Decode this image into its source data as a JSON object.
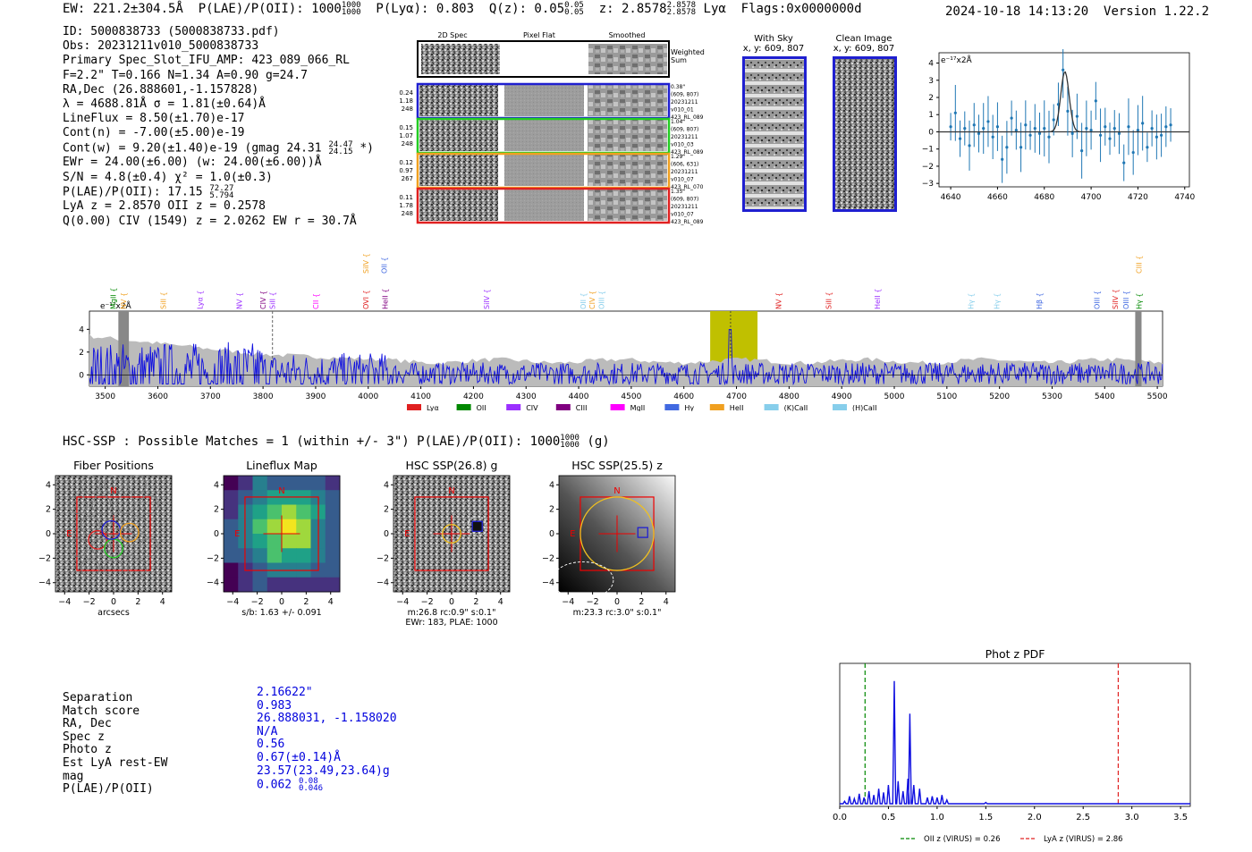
{
  "header": {
    "ew": "EW: 221.2±304.5Å",
    "plae_label": "P(LAE)/P(OII): 1000",
    "plae_hi": "1000",
    "plae_lo": "1000",
    "plya": "P(Lyα): 0.803",
    "qz_label": "Q(z): 0.05",
    "qz_hi": "0.05",
    "qz_lo": "0.05",
    "z_label": "z: 2.8578",
    "z_hi": "2.8578",
    "z_lo": "2.8578",
    "z_line": "Lyα",
    "flags": "Flags:0x0000000d",
    "timestamp": "2024-10-18 14:13:20",
    "version": "Version 1.22.2"
  },
  "info": {
    "id": "ID: 5000838733 (5000838733.pdf)",
    "obs": "Obs: 20231211v010_5000838733",
    "primary": "Primary Spec_Slot_IFU_AMP: 423_089_066_RL",
    "fit": "F=2.2\"  T=0.166  N=1.34  A=0.90  g=24.7",
    "radec": "RA,Dec (26.888601,-1.157828)",
    "lambda": "λ = 4688.81Å   σ = 1.81(±0.64)Å",
    "lineflux": "LineFlux = 8.50(±1.70)e-17",
    "contn": "Cont(n) = -7.00(±5.00)e-19",
    "contw": "Cont(w) = 9.20(±1.40)e-19 (gmag 24.31",
    "contw_hi": "24.47",
    "contw_lo": "24.15",
    "contw_end": "*)",
    "ewr": "EWr = 24.00(±6.00) (w: 24.00(±6.00))Å",
    "sn": "S/N = 4.8(±0.4)  χ² = 1.0(±0.3)",
    "plae": "P(LAE)/P(OII): 17.15",
    "plae_hi": "72.27",
    "plae_lo": "5.794",
    "lyaz": "LyA z = 2.8570  OII z = 0.2578",
    "civ": "Q(0.00) CIV (1549) z = 2.0262  EW r = 30.7Å"
  },
  "cutouts": {
    "col_2d": "2D Spec",
    "col_flat": "Pixel Flat",
    "col_smooth": "Smoothed",
    "weighted": [
      "Weighted",
      "Sum"
    ],
    "fibers": [
      {
        "w": "0.24",
        "snr": "1.18",
        "n": "248",
        "info": [
          "0.38\"",
          "(609, 807)",
          "20231211",
          "v010_01",
          "423_RL_089"
        ],
        "color": "#1f1fd0"
      },
      {
        "w": "0.15",
        "snr": "1.07",
        "n": "248",
        "info": [
          "1.04\"",
          "(609, 807)",
          "20231211",
          "v010_03",
          "423_RL_089"
        ],
        "color": "#22cc22"
      },
      {
        "w": "0.12",
        "snr": "0.97",
        "n": "267",
        "info": [
          "1.29\"",
          "(606, 631)",
          "20231211",
          "v010_07",
          "423_RL_070"
        ],
        "color": "#f0a020"
      },
      {
        "w": "0.11",
        "snr": "1.78",
        "n": "248",
        "info": [
          "1.35\"",
          "(609, 807)",
          "20231211",
          "v010_07",
          "423_RL_089"
        ],
        "color": "#e02020"
      }
    ],
    "with_sky_title": "With Sky",
    "with_sky_xy": "x, y: 609, 807",
    "clean_title": "Clean Image",
    "clean_xy": "x, y: 609, 807"
  },
  "zoom_plot": {
    "ylabel": "e⁻¹⁷x2Å",
    "xticks": [
      "4640",
      "4660",
      "4680",
      "4700",
      "4720",
      "4740"
    ],
    "yticks": [
      "4",
      "3",
      "2",
      "1",
      "0",
      "−1",
      "−2",
      "−3"
    ],
    "xrange": [
      4635,
      4742
    ],
    "yrange": [
      -3.2,
      4.6
    ],
    "fit_center": 4688.8,
    "fit_sigma": 1.81,
    "fit_amp": 3.5,
    "points": [
      [
        4640,
        0.3
      ],
      [
        4642,
        1.1
      ],
      [
        4644,
        -0.4
      ],
      [
        4646,
        0.2
      ],
      [
        4648,
        -0.8
      ],
      [
        4650,
        0.4
      ],
      [
        4652,
        -0.1
      ],
      [
        4654,
        0.2
      ],
      [
        4656,
        0.6
      ],
      [
        4658,
        -0.3
      ],
      [
        4660,
        0.3
      ],
      [
        4662,
        -1.6
      ],
      [
        4664,
        -0.9
      ],
      [
        4666,
        0.8
      ],
      [
        4668,
        0.1
      ],
      [
        4670,
        -0.9
      ],
      [
        4672,
        0.4
      ],
      [
        4674,
        -0.2
      ],
      [
        4676,
        0.2
      ],
      [
        4678,
        -0.1
      ],
      [
        4680,
        0.2
      ],
      [
        4682,
        -0.3
      ],
      [
        4684,
        0.7
      ],
      [
        4686,
        1.6
      ],
      [
        4688,
        3.6
      ],
      [
        4690,
        1.2
      ],
      [
        4692,
        -0.1
      ],
      [
        4694,
        0.9
      ],
      [
        4696,
        -1.1
      ],
      [
        4698,
        0.2
      ],
      [
        4700,
        0.1
      ],
      [
        4702,
        1.8
      ],
      [
        4704,
        -0.2
      ],
      [
        4706,
        0.3
      ],
      [
        4708,
        -0.4
      ],
      [
        4710,
        0.2
      ],
      [
        4712,
        -0.1
      ],
      [
        4714,
        -1.8
      ],
      [
        4716,
        0.3
      ],
      [
        4718,
        -1.2
      ],
      [
        4720,
        0.1
      ],
      [
        4722,
        0.5
      ],
      [
        4724,
        -0.9
      ],
      [
        4726,
        0.2
      ],
      [
        4728,
        -0.3
      ],
      [
        4730,
        -0.2
      ],
      [
        4732,
        0.3
      ],
      [
        4734,
        0.4
      ]
    ]
  },
  "full_spectrum": {
    "ylabel": "e⁻¹⁷x2Å",
    "xticks": [
      "3500",
      "3600",
      "3700",
      "3800",
      "3900",
      "4000",
      "4100",
      "4200",
      "4300",
      "4400",
      "4500",
      "4600",
      "4700",
      "4800",
      "4900",
      "5000",
      "5100",
      "5200",
      "5300",
      "5400",
      "5500"
    ],
    "yticks": [
      "4",
      "2",
      "0"
    ],
    "xrange": [
      3470,
      5510
    ],
    "yrange": [
      -1,
      5.6
    ],
    "highlight": [
      4650,
      4740
    ],
    "lines_row1": [
      {
        "name": "MgII",
        "wave": 3515,
        "color": "#008800"
      },
      {
        "name": "NV",
        "wave": 3535,
        "color": "#f0a020"
      },
      {
        "name": "SiII",
        "wave": 3610,
        "color": "#f0a020"
      },
      {
        "name": "Lyα",
        "wave": 3680,
        "color": "#9b30ff"
      },
      {
        "name": "NV",
        "wave": 3755,
        "color": "#9b30ff"
      },
      {
        "name": "CIV",
        "wave": 3800,
        "color": "#800080"
      },
      {
        "name": "SiII",
        "wave": 3818,
        "color": "#9b30ff"
      },
      {
        "name": "CII",
        "wave": 3900,
        "color": "#ff00ff"
      },
      {
        "name": "OVI",
        "wave": 3995,
        "color": "#e02020"
      },
      {
        "name": "HeII",
        "wave": 4032,
        "color": "#800080"
      },
      {
        "name": "SiIV",
        "wave": 4225,
        "color": "#9b30ff"
      },
      {
        "name": "OII",
        "wave": 4408,
        "color": "#87ceeb"
      },
      {
        "name": "CIV",
        "wave": 4425,
        "color": "#f0a020"
      },
      {
        "name": "OIII",
        "wave": 4443,
        "color": "#87ceeb"
      },
      {
        "name": "NV",
        "wave": 4780,
        "color": "#e02020"
      },
      {
        "name": "SiII",
        "wave": 4875,
        "color": "#e02020"
      },
      {
        "name": "HeII",
        "wave": 4968,
        "color": "#9b30ff"
      },
      {
        "name": "Hγ",
        "wave": 5145,
        "color": "#87ceeb"
      },
      {
        "name": "Hγ",
        "wave": 5195,
        "color": "#87ceeb"
      },
      {
        "name": "Hβ",
        "wave": 5275,
        "color": "#4169e1"
      },
      {
        "name": "OIII",
        "wave": 5385,
        "color": "#4169e1"
      },
      {
        "name": "SiIV",
        "wave": 5420,
        "color": "#e02020"
      },
      {
        "name": "OIII",
        "wave": 5440,
        "color": "#4169e1"
      },
      {
        "name": "Hγ",
        "wave": 5465,
        "color": "#008800"
      }
    ],
    "lines_row0": [
      {
        "name": "SiIV",
        "wave": 3995,
        "color": "#f0a020"
      },
      {
        "name": "OII",
        "wave": 4030,
        "color": "#4169e1"
      },
      {
        "name": "CIII",
        "wave": 5465,
        "color": "#f0a020"
      }
    ],
    "legend": [
      {
        "name": "Lyα",
        "color": "#e02020"
      },
      {
        "name": "OII",
        "color": "#008800"
      },
      {
        "name": "CIV",
        "color": "#9b30ff"
      },
      {
        "name": "CIII",
        "color": "#800080"
      },
      {
        "name": "MgII",
        "color": "#ff00ff"
      },
      {
        "name": "Hγ",
        "color": "#4169e1"
      },
      {
        "name": "HeII",
        "color": "#f0a020"
      },
      {
        "name": "(K)CaII",
        "color": "#87ceeb"
      },
      {
        "name": "(H)CaII",
        "color": "#87ceeb"
      }
    ]
  },
  "hsc": {
    "title": "HSC-SSP : Possible Matches = 1 (within +/- 3\")  P(LAE)/P(OII): 1000",
    "title_hi": "1000",
    "title_lo": "1000",
    "title_band": "(g)",
    "panels": [
      {
        "title": "Fiber Positions",
        "caption1": "arcsecs",
        "caption2": ""
      },
      {
        "title": "Lineflux Map",
        "caption1": "s/b: 1.63 +/- 0.091",
        "caption2": ""
      },
      {
        "title": "HSC SSP(26.8) g",
        "caption1": "m:26.8 rc:0.9\"  s:0.1\"",
        "caption2": "EWr: 183, PLAE: 1000"
      },
      {
        "title": "HSC SSP(25.5) z",
        "caption1": "m:23.3 rc:3.0\"  s:0.1\"",
        "caption2": ""
      }
    ],
    "ticks": [
      "−4",
      "−2",
      "0",
      "2",
      "4"
    ],
    "yticks": [
      "4",
      "2",
      "0",
      "−2",
      "−4"
    ],
    "north": "N",
    "east": "E"
  },
  "match": {
    "labels": [
      "Separation",
      "Match score",
      "RA, Dec",
      "Spec z",
      "Photo z",
      "Est LyA rest-EW",
      "mag",
      "P(LAE)/P(OII)"
    ],
    "values": [
      "2.16622\"",
      "0.983",
      "26.888031, -1.158020",
      "N/A",
      "0.56",
      "0.67(±0.14)Å",
      "23.57(23.49,23.64)g",
      "0.062"
    ],
    "plae_hi": "0.08",
    "plae_lo": "0.046"
  },
  "photz": {
    "title": "Phot z PDF",
    "xticks": [
      "0.0",
      "0.5",
      "1.0",
      "1.5",
      "2.0",
      "2.5",
      "3.0",
      "3.5"
    ],
    "xrange": [
      0,
      3.6
    ],
    "oii_z": 0.26,
    "lya_z": 2.86,
    "legend_oii": "OII z (VIRUS) = 0.26",
    "legend_lya": "LyA z (VIRUS) = 2.86",
    "peaks": [
      [
        0.05,
        0.02
      ],
      [
        0.1,
        0.06
      ],
      [
        0.15,
        0.04
      ],
      [
        0.2,
        0.08
      ],
      [
        0.25,
        0.05
      ],
      [
        0.3,
        0.1
      ],
      [
        0.35,
        0.07
      ],
      [
        0.4,
        0.12
      ],
      [
        0.45,
        0.09
      ],
      [
        0.5,
        0.15
      ],
      [
        0.56,
        0.98
      ],
      [
        0.6,
        0.18
      ],
      [
        0.65,
        0.1
      ],
      [
        0.7,
        0.2
      ],
      [
        0.72,
        0.72
      ],
      [
        0.76,
        0.15
      ],
      [
        0.82,
        0.12
      ],
      [
        0.9,
        0.05
      ],
      [
        0.95,
        0.06
      ],
      [
        1.0,
        0.05
      ],
      [
        1.05,
        0.07
      ],
      [
        1.1,
        0.03
      ],
      [
        1.5,
        0.01
      ]
    ]
  }
}
